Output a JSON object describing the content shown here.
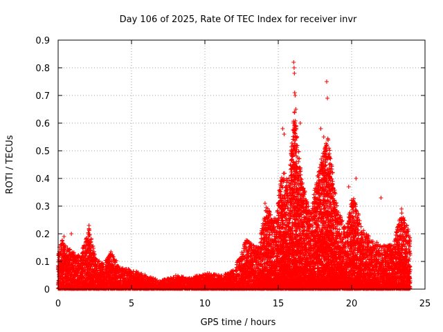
{
  "chart_data": {
    "type": "scatter",
    "title": "Day 106 of 2025, Rate Of TEC Index for receiver invr",
    "xlabel": "GPS time / hours",
    "ylabel": "ROTI / TECUs",
    "xlim": [
      0,
      25
    ],
    "ylim": [
      0,
      0.9
    ],
    "x_ticks": [
      "0",
      "5",
      "10",
      "15",
      "20",
      "25"
    ],
    "y_ticks": [
      "0",
      "0.1",
      "0.2",
      "0.3",
      "0.4",
      "0.5",
      "0.6",
      "0.7",
      "0.8",
      "0.9"
    ],
    "grid": true,
    "marker": "plus",
    "color": "#ff0000",
    "envelope": [
      {
        "x": 0.0,
        "y": 0.14
      },
      {
        "x": 0.3,
        "y": 0.18
      },
      {
        "x": 0.6,
        "y": 0.15
      },
      {
        "x": 1.0,
        "y": 0.14
      },
      {
        "x": 1.5,
        "y": 0.12
      },
      {
        "x": 2.1,
        "y": 0.22
      },
      {
        "x": 2.6,
        "y": 0.11
      },
      {
        "x": 3.1,
        "y": 0.09
      },
      {
        "x": 3.6,
        "y": 0.14
      },
      {
        "x": 4.2,
        "y": 0.08
      },
      {
        "x": 5.0,
        "y": 0.07
      },
      {
        "x": 6.0,
        "y": 0.05
      },
      {
        "x": 7.0,
        "y": 0.03
      },
      {
        "x": 8.0,
        "y": 0.05
      },
      {
        "x": 9.0,
        "y": 0.04
      },
      {
        "x": 10.0,
        "y": 0.06
      },
      {
        "x": 11.0,
        "y": 0.05
      },
      {
        "x": 12.0,
        "y": 0.07
      },
      {
        "x": 12.8,
        "y": 0.18
      },
      {
        "x": 13.6,
        "y": 0.15
      },
      {
        "x": 14.2,
        "y": 0.3
      },
      {
        "x": 14.8,
        "y": 0.25
      },
      {
        "x": 15.3,
        "y": 0.45
      },
      {
        "x": 15.7,
        "y": 0.38
      },
      {
        "x": 16.1,
        "y": 0.65
      },
      {
        "x": 16.6,
        "y": 0.4
      },
      {
        "x": 17.2,
        "y": 0.28
      },
      {
        "x": 17.8,
        "y": 0.45
      },
      {
        "x": 18.4,
        "y": 0.55
      },
      {
        "x": 19.0,
        "y": 0.3
      },
      {
        "x": 19.6,
        "y": 0.22
      },
      {
        "x": 20.1,
        "y": 0.35
      },
      {
        "x": 20.7,
        "y": 0.22
      },
      {
        "x": 21.4,
        "y": 0.18
      },
      {
        "x": 22.0,
        "y": 0.16
      },
      {
        "x": 22.8,
        "y": 0.16
      },
      {
        "x": 23.4,
        "y": 0.28
      },
      {
        "x": 24.0,
        "y": 0.2
      }
    ],
    "highlights": [
      {
        "x": 15.3,
        "y": 0.58
      },
      {
        "x": 15.4,
        "y": 0.56
      },
      {
        "x": 16.05,
        "y": 0.82
      },
      {
        "x": 16.08,
        "y": 0.8
      },
      {
        "x": 16.1,
        "y": 0.78
      },
      {
        "x": 16.12,
        "y": 0.71
      },
      {
        "x": 16.15,
        "y": 0.7
      },
      {
        "x": 16.1,
        "y": 0.64
      },
      {
        "x": 16.2,
        "y": 0.65
      },
      {
        "x": 16.5,
        "y": 0.6
      },
      {
        "x": 17.9,
        "y": 0.58
      },
      {
        "x": 18.3,
        "y": 0.75
      },
      {
        "x": 18.35,
        "y": 0.69
      },
      {
        "x": 18.1,
        "y": 0.55
      },
      {
        "x": 18.5,
        "y": 0.48
      },
      {
        "x": 20.3,
        "y": 0.4
      },
      {
        "x": 22.0,
        "y": 0.33
      },
      {
        "x": 23.4,
        "y": 0.29
      },
      {
        "x": 2.1,
        "y": 0.23
      },
      {
        "x": 0.4,
        "y": 0.19
      },
      {
        "x": 0.9,
        "y": 0.2
      },
      {
        "x": 14.1,
        "y": 0.31
      },
      {
        "x": 19.8,
        "y": 0.37
      }
    ]
  }
}
